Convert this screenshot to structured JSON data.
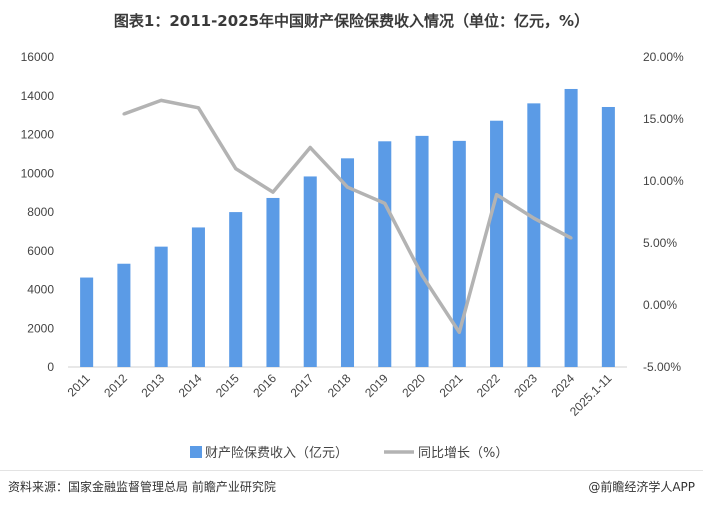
{
  "title": "图表1：2011-2025年中国财产保险保费收入情况（单位：亿元，%）",
  "source": "资料来源：国家金融监督管理总局  前瞻产业研究院",
  "brand": "@前瞻经济学人APP",
  "colors": {
    "bar": "#5b9be6",
    "line": "#b3b3b3"
  },
  "chart_data": {
    "type": "bar",
    "categories": [
      "2011",
      "2012",
      "2013",
      "2014",
      "2015",
      "2016",
      "2017",
      "2018",
      "2019",
      "2020",
      "2021",
      "2022",
      "2023",
      "2024",
      "2025.1-11"
    ],
    "series": [
      {
        "name": "财产险保费收入（亿元）",
        "type": "bar",
        "axis": "left",
        "values": [
          4617,
          5330,
          6212,
          7203,
          7995,
          8725,
          9835,
          10770,
          11649,
          11929,
          11671,
          12712,
          13607,
          14350,
          13420
        ]
      },
      {
        "name": "同比增长（%）",
        "type": "line",
        "axis": "right",
        "values": [
          null,
          15.4,
          16.5,
          15.9,
          11.0,
          9.1,
          12.7,
          9.5,
          8.2,
          2.4,
          -2.2,
          8.9,
          7.0,
          5.4,
          null
        ]
      }
    ],
    "y_left": {
      "min": 0,
      "max": 16000,
      "ticks": [
        "0",
        "2000",
        "4000",
        "6000",
        "8000",
        "10000",
        "12000",
        "14000",
        "16000"
      ]
    },
    "y_right": {
      "min": -5,
      "max": 20,
      "ticks": [
        "-5.00%",
        "0.00%",
        "5.00%",
        "10.00%",
        "15.00%",
        "20.00%"
      ]
    },
    "grid": false,
    "legend_position": "bottom"
  }
}
